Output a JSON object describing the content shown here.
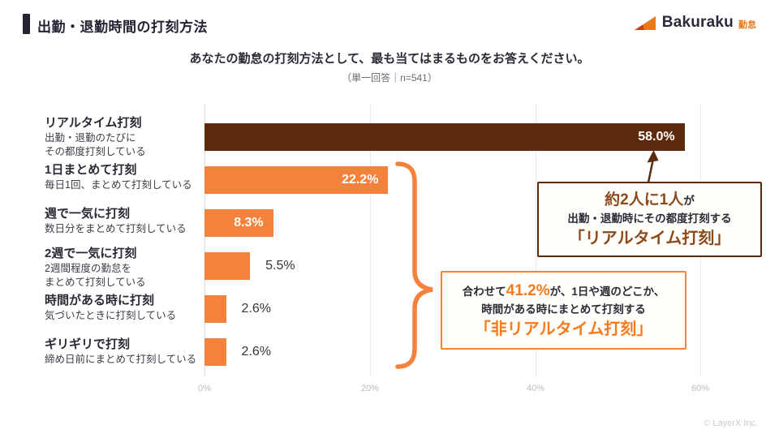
{
  "header": {
    "title": "出勤・退勤時間の打刻方法",
    "logo": {
      "brand": "Bakuraku",
      "product": "勤怠"
    }
  },
  "question": {
    "text": "あなたの勤怠の打刻方法として、最も当てはまるものをお答えください。",
    "note": "（単一回答｜n=541）"
  },
  "chart_data": {
    "type": "bar",
    "orientation": "horizontal",
    "title": "あなたの勤怠の打刻方法として、最も当てはまるものをお答えください。",
    "sample_note": "単一回答｜n=541",
    "categories": [
      "リアルタイム打刻",
      "1日まとめて打刻",
      "週で一気に打刻",
      "2週で一気に打刻",
      "時間がある時に打刻",
      "ギリギリで打刻"
    ],
    "descriptions": [
      "出勤・退勤のたびに\nその都度打刻している",
      "毎日1回、まとめて打刻している",
      "数日分をまとめて打刻している",
      "2週間程度の勤怠を\nまとめて打刻している",
      "気づいたときに打刻している",
      "締め日前にまとめて打刻している"
    ],
    "values": [
      58.0,
      22.2,
      8.3,
      5.5,
      2.6,
      2.6
    ],
    "value_labels": [
      "58.0%",
      "22.2%",
      "8.3%",
      "5.5%",
      "2.6%",
      "2.6%"
    ],
    "bar_colors": [
      "#5c2b0e",
      "#f5823c",
      "#f5823c",
      "#f5823c",
      "#f5823c",
      "#f5823c"
    ],
    "xlim": [
      0,
      60
    ],
    "x_ticks": [
      "0%",
      "20%",
      "40%",
      "60%"
    ],
    "grid": true,
    "legend": false
  },
  "annotations": {
    "realtime": {
      "line1_strong": "約2人に1人",
      "line1_rest": "が",
      "line2": "出勤・退勤時にその都度打刻する",
      "line3": "「リアルタイム打刻」",
      "accent_color": "#5c2b0e"
    },
    "non_realtime": {
      "line1_pre": "合わせて",
      "line1_strong": "41.2%",
      "line1_post": "が、1日や週のどこか、",
      "line2": "時間がある時にまとめて打刻する",
      "line3": "「非リアルタイム打刻」",
      "accent_color": "#f5823c"
    }
  },
  "footer": {
    "copyright": "© LayerX Inc."
  }
}
